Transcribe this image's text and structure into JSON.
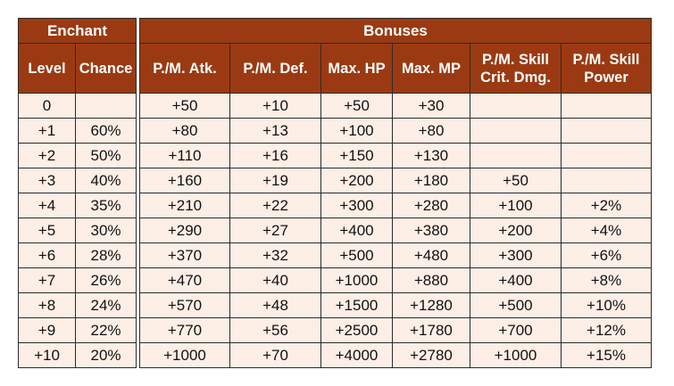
{
  "enchant": {
    "group_header": "Enchant",
    "columns": [
      "Level",
      "Chance"
    ],
    "rows": [
      [
        "0",
        ""
      ],
      [
        "+1",
        "60%"
      ],
      [
        "+2",
        "50%"
      ],
      [
        "+3",
        "40%"
      ],
      [
        "+4",
        "35%"
      ],
      [
        "+5",
        "30%"
      ],
      [
        "+6",
        "28%"
      ],
      [
        "+7",
        "26%"
      ],
      [
        "+8",
        "24%"
      ],
      [
        "+9",
        "22%"
      ],
      [
        "+10",
        "20%"
      ]
    ]
  },
  "bonuses": {
    "group_header": "Bonuses",
    "columns": [
      [
        "P./M. Atk."
      ],
      [
        "P./M. Def."
      ],
      [
        "Max. HP"
      ],
      [
        "Max. MP"
      ],
      [
        "P./M. Skill",
        "Crit. Dmg."
      ],
      [
        "P./M. Skill",
        "Power"
      ]
    ],
    "rows": [
      [
        "+50",
        "+10",
        "+50",
        "+30",
        "",
        ""
      ],
      [
        "+80",
        "+13",
        "+100",
        "+80",
        "",
        ""
      ],
      [
        "+110",
        "+16",
        "+150",
        "+130",
        "",
        ""
      ],
      [
        "+160",
        "+19",
        "+200",
        "+180",
        "+50",
        ""
      ],
      [
        "+210",
        "+22",
        "+300",
        "+280",
        "+100",
        "+2%"
      ],
      [
        "+290",
        "+27",
        "+400",
        "+380",
        "+200",
        "+4%"
      ],
      [
        "+370",
        "+32",
        "+500",
        "+480",
        "+300",
        "+6%"
      ],
      [
        "+470",
        "+40",
        "+1000",
        "+880",
        "+400",
        "+8%"
      ],
      [
        "+570",
        "+48",
        "+1500",
        "+1280",
        "+500",
        "+10%"
      ],
      [
        "+770",
        "+56",
        "+2500",
        "+1780",
        "+700",
        "+12%"
      ],
      [
        "+1000",
        "+70",
        "+4000",
        "+2780",
        "+1000",
        "+15%"
      ]
    ]
  },
  "colors": {
    "header_bg": "#9b3a12",
    "header_text": "#ffffff",
    "cell_bg": "#fdeee6",
    "border": "#2b2b2b"
  }
}
